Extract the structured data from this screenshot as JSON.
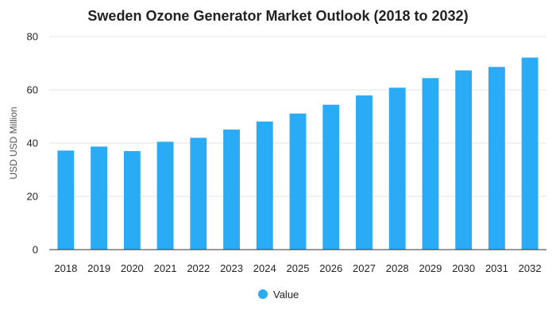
{
  "chart_data": {
    "type": "bar",
    "title": "Sweden Ozone Generator Market Outlook (2018 to 2032)",
    "xlabel": "",
    "ylabel": "USD USD Million",
    "categories": [
      "2018",
      "2019",
      "2020",
      "2021",
      "2022",
      "2023",
      "2024",
      "2025",
      "2026",
      "2027",
      "2028",
      "2029",
      "2030",
      "2031",
      "2032"
    ],
    "series": [
      {
        "name": "Value",
        "values": [
          37.2,
          38.7,
          37.0,
          40.5,
          42.0,
          45.1,
          48.1,
          51.1,
          54.4,
          57.9,
          60.8,
          64.4,
          67.3,
          68.6,
          72.1
        ]
      }
    ],
    "ylim": [
      0,
      80
    ],
    "yticks": [
      0,
      20,
      40,
      60,
      80
    ],
    "grid": true,
    "legend": "bottom",
    "bar_color": "#2aabf6"
  }
}
